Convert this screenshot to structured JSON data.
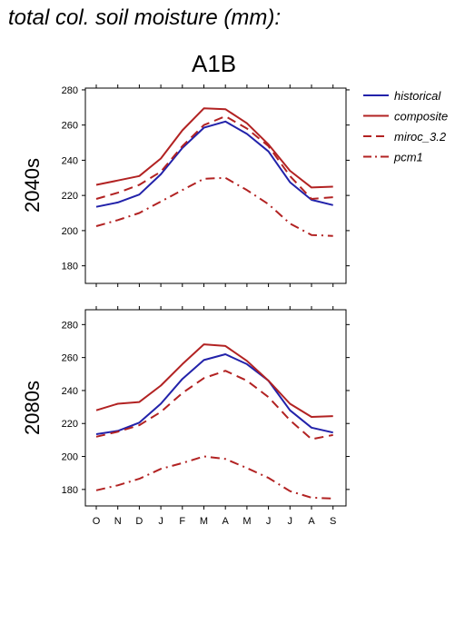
{
  "figure": {
    "title": "total col. soil moisture (mm):",
    "scenario": "A1B"
  },
  "legend": [
    {
      "name": "historical",
      "color": "#2222aa",
      "dash": "solid"
    },
    {
      "name": "composite",
      "color": "#b22222",
      "dash": "solid"
    },
    {
      "name": "miroc_3.2",
      "color": "#b22222",
      "dash": "dashed"
    },
    {
      "name": "pcm1",
      "color": "#b22222",
      "dash": "dashdot"
    }
  ],
  "chart_data": [
    {
      "type": "line",
      "panel_label": "2040s",
      "categories": [
        "O",
        "N",
        "D",
        "J",
        "F",
        "M",
        "A",
        "M",
        "J",
        "J",
        "A",
        "S"
      ],
      "yticks": [
        180,
        200,
        220,
        240,
        260,
        280
      ],
      "ylim": [
        170,
        281
      ],
      "series": [
        {
          "name": "historical",
          "values": [
            213.5,
            216,
            220.5,
            232,
            247,
            258.5,
            262,
            255,
            245,
            227.5,
            217.5,
            214.5
          ]
        },
        {
          "name": "composite",
          "values": [
            226,
            228.5,
            231,
            241,
            257,
            269.5,
            269,
            261,
            249,
            234,
            224.5,
            225
          ]
        },
        {
          "name": "miroc_3.2",
          "values": [
            218,
            221.5,
            226,
            233.5,
            248,
            260,
            265,
            258,
            248,
            231,
            218,
            219
          ]
        },
        {
          "name": "pcm1",
          "values": [
            202.5,
            206,
            210,
            216.5,
            223,
            229.5,
            230,
            223,
            215,
            204,
            197.5,
            197
          ]
        }
      ]
    },
    {
      "type": "line",
      "panel_label": "2080s",
      "categories": [
        "O",
        "N",
        "D",
        "J",
        "F",
        "M",
        "A",
        "M",
        "J",
        "J",
        "A",
        "S"
      ],
      "yticks": [
        180,
        200,
        220,
        240,
        260,
        280
      ],
      "ylim": [
        170,
        289
      ],
      "series": [
        {
          "name": "historical",
          "values": [
            213.5,
            215.5,
            220.5,
            232,
            247,
            258.5,
            262,
            256,
            246,
            228,
            217.5,
            214.5
          ]
        },
        {
          "name": "composite",
          "values": [
            228,
            232,
            233,
            243,
            256,
            268,
            267,
            258,
            246,
            232,
            224,
            224.5
          ]
        },
        {
          "name": "miroc_3.2",
          "values": [
            212,
            215,
            219,
            227,
            238.5,
            247.5,
            252,
            246,
            236,
            222,
            210.5,
            213
          ]
        },
        {
          "name": "pcm1",
          "values": [
            179.5,
            182.5,
            186.5,
            192.5,
            196,
            200,
            198.5,
            193,
            187,
            179,
            175,
            174.5
          ]
        }
      ]
    }
  ]
}
